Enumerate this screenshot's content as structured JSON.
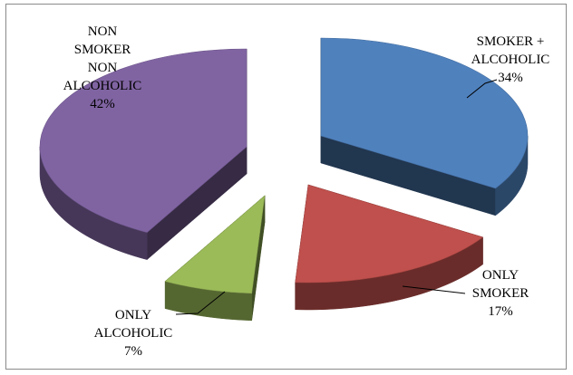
{
  "chart_data": {
    "type": "pie",
    "style": "3d-exploded",
    "title": "",
    "slices": [
      {
        "label": "SMOKER + ALCOHOLIC",
        "label_lines": [
          "SMOKER +",
          "ALCOHOLIC",
          "34%"
        ],
        "value": 34,
        "color": "#4f81bd"
      },
      {
        "label": "ONLY SMOKER",
        "label_lines": [
          "ONLY",
          "SMOKER",
          "17%"
        ],
        "value": 17,
        "color": "#c0504d"
      },
      {
        "label": "ONLY ALCOHOLIC",
        "label_lines": [
          "ONLY",
          "ALCOHOLIC",
          "7%"
        ],
        "value": 7,
        "color": "#9bbb59"
      },
      {
        "label": "NON SMOKER NON ALCOHOLIC",
        "label_lines": [
          "NON",
          "SMOKER",
          "NON",
          "ALCOHOLIC",
          "42%"
        ],
        "value": 42,
        "color": "#8064a2"
      }
    ]
  }
}
